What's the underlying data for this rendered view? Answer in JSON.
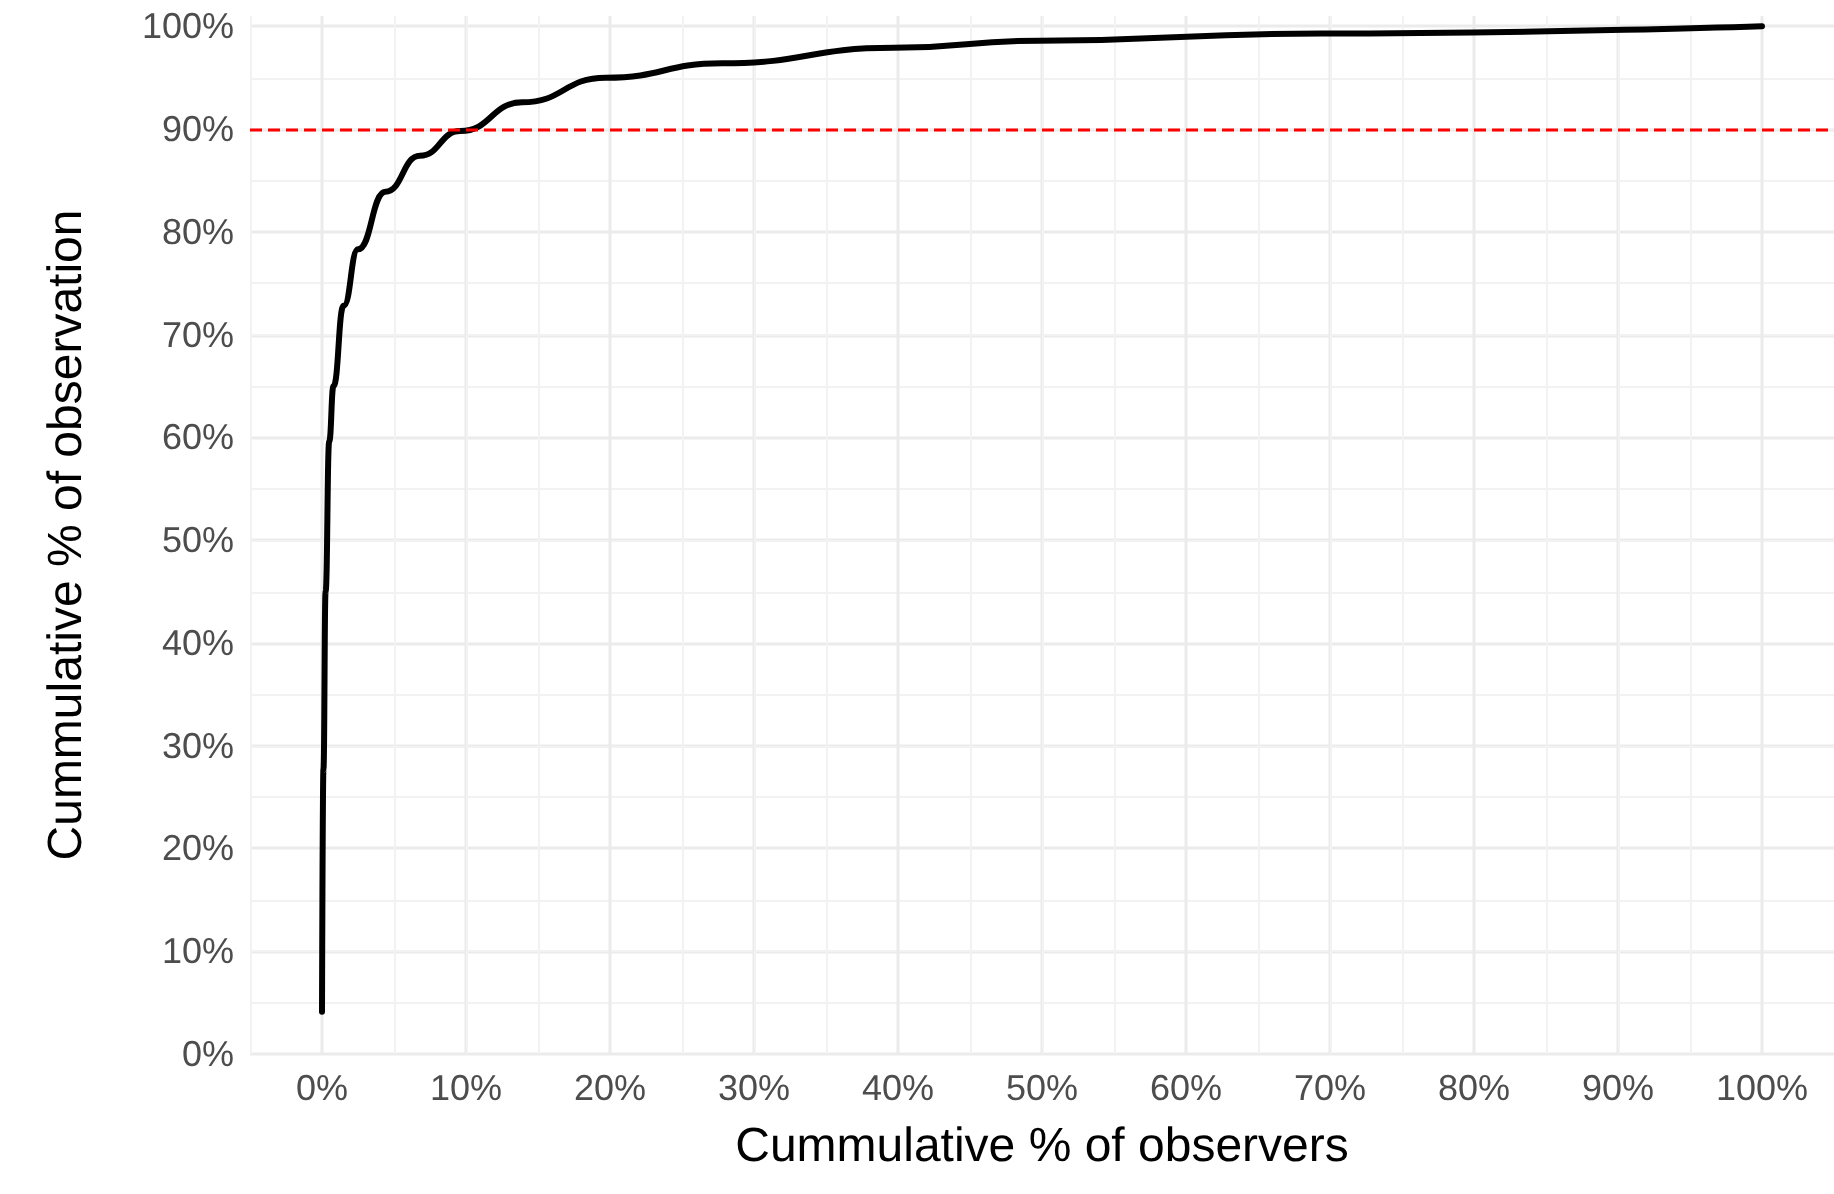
{
  "chart_data": {
    "type": "line",
    "xlabel": "Cummulative % of observers",
    "ylabel": "Cummulative % of observation",
    "x": [
      0,
      0.1,
      0.25,
      0.5,
      0.8,
      1.5,
      2.5,
      4.4,
      6.8,
      9.6,
      13.9,
      19.7,
      27.8,
      39.7,
      49.8,
      69.4,
      100
    ],
    "series": [
      {
        "color": "#000000",
        "values": [
          4.1,
          27.7,
          45,
          59.6,
          65,
          72.8,
          78.3,
          83.9,
          87.4,
          89.8,
          92.6,
          95,
          96.4,
          97.9,
          98.6,
          99.3,
          100
        ]
      }
    ],
    "xlim": [
      -5,
      105
    ],
    "ylim": [
      0,
      101
    ],
    "xticks": [
      {
        "value": 0,
        "label": "0%"
      },
      {
        "value": 10,
        "label": "10%"
      },
      {
        "value": 20,
        "label": "20%"
      },
      {
        "value": 30,
        "label": "30%"
      },
      {
        "value": 40,
        "label": "40%"
      },
      {
        "value": 50,
        "label": "50%"
      },
      {
        "value": 60,
        "label": "60%"
      },
      {
        "value": 70,
        "label": "70%"
      },
      {
        "value": 80,
        "label": "80%"
      },
      {
        "value": 90,
        "label": "90%"
      },
      {
        "value": 100,
        "label": "100%"
      }
    ],
    "yticks": [
      {
        "value": 0,
        "label": "0%"
      },
      {
        "value": 10,
        "label": "10%"
      },
      {
        "value": 20,
        "label": "20%"
      },
      {
        "value": 30,
        "label": "30%"
      },
      {
        "value": 40,
        "label": "40%"
      },
      {
        "value": 50,
        "label": "50%"
      },
      {
        "value": 60,
        "label": "60%"
      },
      {
        "value": 70,
        "label": "70%"
      },
      {
        "value": 80,
        "label": "80%"
      },
      {
        "value": 90,
        "label": "90%"
      },
      {
        "value": 100,
        "label": "100%"
      }
    ],
    "ref_lines": [
      {
        "axis": "y",
        "value": 90,
        "color": "#ff0000",
        "line_style": "dashed"
      }
    ],
    "grid": true,
    "marker": "none",
    "line_style": "solid"
  }
}
